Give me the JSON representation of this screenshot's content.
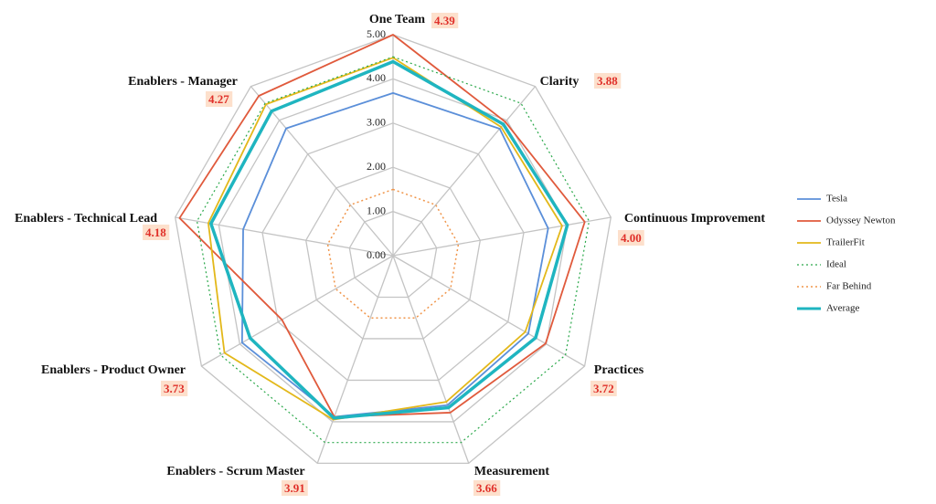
{
  "chart_data": {
    "type": "radar",
    "categories": [
      "One Team",
      "Clarity",
      "Continuous Improvement",
      "Practices",
      "Measurement",
      "Enablers - Scrum Master",
      "Enablers - Product Owner",
      "Enablers - Technical Lead",
      "Enablers - Manager"
    ],
    "ylim": [
      0,
      5
    ],
    "yticks": [
      {
        "value": 0,
        "label": "0.00"
      },
      {
        "value": 1,
        "label": "1.00"
      },
      {
        "value": 2,
        "label": "2.00"
      },
      {
        "value": 3,
        "label": "3.00"
      },
      {
        "value": 4,
        "label": "4.00"
      },
      {
        "value": 5,
        "label": "5.00"
      }
    ],
    "grid": true,
    "legend": "right",
    "series": [
      {
        "name": "Tesla",
        "color": "#5b8fd9",
        "line_style": "solid",
        "line_width": 1.8,
        "values": [
          3.68,
          3.75,
          3.56,
          3.53,
          3.6,
          3.88,
          3.94,
          3.44,
          3.76
        ]
      },
      {
        "name": "Odyssey Newton",
        "color": "#e05a3c",
        "line_style": "solid",
        "line_width": 1.8,
        "values": [
          5.0,
          3.95,
          4.4,
          3.98,
          3.78,
          3.88,
          2.9,
          4.9,
          4.72
        ]
      },
      {
        "name": "TrailerFit",
        "color": "#e3b81a",
        "line_style": "solid",
        "line_width": 1.8,
        "values": [
          4.48,
          3.8,
          3.88,
          3.45,
          3.52,
          3.95,
          4.4,
          4.24,
          4.47
        ]
      },
      {
        "name": "Ideal",
        "color": "#2aa84a",
        "line_style": "dotted",
        "line_width": 1.2,
        "values": [
          4.5,
          4.5,
          4.5,
          4.5,
          4.5,
          4.5,
          4.5,
          4.5,
          4.5
        ]
      },
      {
        "name": "Far Behind",
        "color": "#f0954a",
        "line_style": "dotted",
        "line_width": 1.5,
        "values": [
          1.5,
          1.5,
          1.5,
          1.5,
          1.5,
          1.5,
          1.5,
          1.5,
          1.5
        ]
      },
      {
        "name": "Average",
        "color": "#1fb5c0",
        "line_style": "solid",
        "line_width": 3.5,
        "values": [
          4.39,
          3.88,
          4.0,
          3.72,
          3.66,
          3.91,
          3.73,
          4.18,
          4.27
        ],
        "value_labels": [
          "4.39",
          "3.88",
          "4.00",
          "3.72",
          "3.66",
          "3.91",
          "3.73",
          "4.18",
          "4.27"
        ]
      }
    ]
  }
}
